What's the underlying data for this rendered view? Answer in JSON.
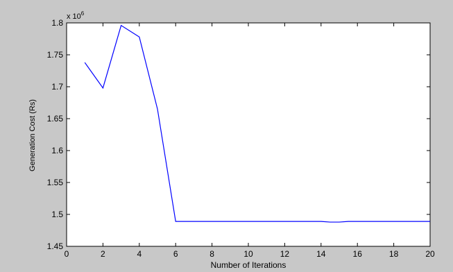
{
  "chart_data": {
    "type": "line",
    "xlabel": "Number of Iterations",
    "ylabel": "Generation Cost (Rs)",
    "exponent_label": {
      "base": "x 10",
      "power": "6"
    },
    "xlim": [
      0,
      20
    ],
    "ylim": [
      1.45,
      1.8
    ],
    "xticks": [
      0,
      2,
      4,
      6,
      8,
      10,
      12,
      14,
      16,
      18,
      20
    ],
    "xtick_labels": [
      "0",
      "2",
      "4",
      "6",
      "8",
      "10",
      "12",
      "14",
      "16",
      "18",
      "20"
    ],
    "yticks": [
      1.45,
      1.5,
      1.55,
      1.6,
      1.65,
      1.7,
      1.75,
      1.8
    ],
    "ytick_labels": [
      "1.45",
      "1.5",
      "1.55",
      "1.6",
      "1.65",
      "1.7",
      "1.75",
      "1.8"
    ],
    "grid": false,
    "series": [
      {
        "color": "#0000ff",
        "x": [
          1,
          2,
          3,
          4,
          5,
          6,
          7,
          8,
          9,
          10,
          11,
          12,
          13,
          14,
          14.5,
          15,
          15.5,
          16,
          17,
          18,
          19,
          20
        ],
        "y": [
          1.738,
          1.698,
          1.796,
          1.778,
          1.665,
          1.489,
          1.489,
          1.489,
          1.489,
          1.489,
          1.489,
          1.489,
          1.489,
          1.489,
          1.488,
          1.488,
          1.489,
          1.489,
          1.489,
          1.489,
          1.489,
          1.489
        ]
      }
    ]
  }
}
